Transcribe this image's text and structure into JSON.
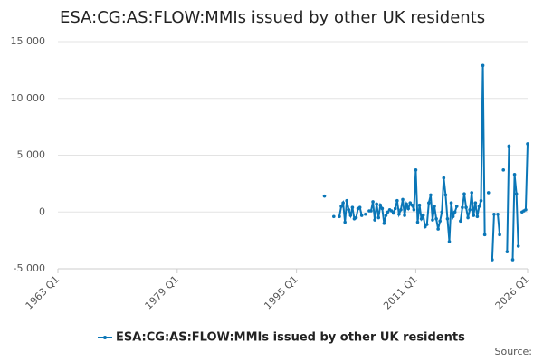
{
  "chart_data": {
    "type": "line",
    "title": "ESA:CG:AS:FLOW:MMIs issued by other UK residents",
    "source": "Source:",
    "x": [
      1998.75,
      1999,
      1999.25,
      1999.5,
      1999.75,
      2000,
      2000.25,
      2000.5,
      2000.75,
      2001,
      2001.25,
      2001.5,
      2001.75,
      2002,
      2002.25,
      2002.5,
      2002.75,
      2003,
      2003.25,
      2003.5,
      2003.75,
      2004,
      2004.25,
      2004.5,
      2004.75,
      2005,
      2005.25,
      2005.5,
      2005.75,
      2006,
      2006.25,
      2006.5,
      2006.75,
      2007,
      2007.25,
      2007.5,
      2007.75,
      2008,
      2008.25,
      2008.5,
      2008.75,
      2009,
      2009.25,
      2009.5,
      2009.75,
      2010,
      2010.25,
      2010.5,
      2010.75,
      2011,
      2011.25,
      2011.5,
      2011.75,
      2012,
      2012.25,
      2012.5,
      2012.75,
      2013,
      2013.25,
      2013.5,
      2013.75,
      2014,
      2014.25,
      2014.5,
      2014.75,
      2015,
      2015.25,
      2015.5,
      2015.75,
      2016,
      2016.25,
      2016.5,
      2016.75,
      2017,
      2017.25,
      2017.5,
      2017.75,
      2018,
      2018.25,
      2018.5,
      2018.75,
      2019,
      2019.25,
      2019.5,
      2019.75,
      2020,
      2020.25,
      2020.5,
      2020.75,
      2021,
      2021.25,
      2021.5,
      2021.75,
      2022,
      2022.25,
      2022.5,
      2022.75,
      2023,
      2023.25,
      2023.5,
      2023.75,
      2024,
      2024.25,
      2024.5,
      2024.75,
      2025,
      2025.25,
      2025.5,
      2025.75,
      2026
    ],
    "series": [
      {
        "name": "ESA:CG:AS:FLOW:MMIs issued by other UK residents",
        "color": "#0a76b7",
        "values": [
          1400,
          null,
          null,
          null,
          null,
          -400,
          null,
          null,
          -400,
          500,
          800,
          -900,
          1000,
          200,
          -300,
          400,
          -600,
          -500,
          300,
          400,
          -300,
          null,
          -200,
          null,
          100,
          100,
          900,
          -700,
          700,
          -500,
          600,
          300,
          -1000,
          -300,
          0,
          200,
          100,
          -100,
          300,
          1000,
          -200,
          200,
          1100,
          -300,
          700,
          300,
          800,
          600,
          200,
          3700,
          -900,
          600,
          -600,
          -300,
          -1300,
          -1100,
          800,
          1500,
          -700,
          500,
          -600,
          -1500,
          -800,
          0,
          3000,
          1500,
          -600,
          -2600,
          800,
          -400,
          0,
          500,
          null,
          -800,
          400,
          1600,
          400,
          -500,
          200,
          1700,
          -300,
          800,
          -400,
          500,
          1000,
          12900,
          -2000,
          null,
          1700,
          null,
          -4200,
          -200,
          null,
          -200,
          -2000,
          null,
          3700,
          null,
          -3500,
          5800,
          null,
          -4200,
          3300,
          1600,
          -3000,
          null,
          0,
          100,
          200,
          6000
        ]
      }
    ],
    "xlim": [
      1963,
      2026
    ],
    "xticks": [
      {
        "value": 1963,
        "label": "1963 Q1"
      },
      {
        "value": 1979,
        "label": "1979 Q1"
      },
      {
        "value": 1995,
        "label": "1995 Q1"
      },
      {
        "value": 2011,
        "label": "2011 Q1"
      },
      {
        "value": 2026,
        "label": "2026 Q1"
      }
    ],
    "ylim": [
      -5000,
      15000
    ],
    "yticks": [
      {
        "value": -5000,
        "label": "-5 000"
      },
      0,
      {
        "value": 5000,
        "label": "5 000"
      },
      {
        "value": 10000,
        "label": "10 000"
      },
      {
        "value": 15000,
        "label": "15 000"
      }
    ],
    "grid": true,
    "legend": "bottom"
  }
}
